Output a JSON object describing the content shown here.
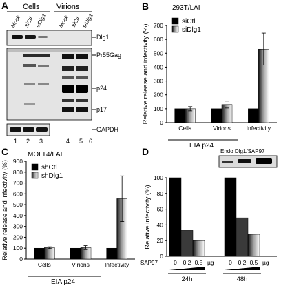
{
  "figure": {
    "panelA": {
      "letter": "A",
      "group_cells": "Cells",
      "group_virions": "Virions",
      "lane_headers": [
        "Mock",
        "siCtl",
        "siDlg1",
        "Mock",
        "siCtl",
        "siDlg1"
      ],
      "lane_numbers": [
        "1",
        "2",
        "3",
        "4",
        "5",
        "6"
      ],
      "blots": {
        "dlg1": "Dlg1",
        "pr55": "Pr55Gag",
        "p24": "p24",
        "p17": "p17",
        "gapdh": "GAPDH"
      }
    },
    "panelB": {
      "letter": "B",
      "cell_line": "293T/LAI",
      "eia": "EIA p24"
    },
    "panelC": {
      "letter": "C",
      "cell_line": "MOLT4/LAI",
      "eia": "EIA p24"
    },
    "panelD": {
      "letter": "D",
      "inset_label": "Endo Dlg1/SAP97",
      "sap97_label": "SAP97",
      "dose_labels": [
        "0",
        "0.2",
        "0.5",
        "µg",
        "0",
        "0.2",
        "0.5",
        "µg"
      ],
      "time_labels": [
        "24h",
        "48h"
      ]
    }
  },
  "chart_data": [
    {
      "panel": "B",
      "type": "bar",
      "ylabel": "Relative release and infectivity (%)",
      "ylim": [
        0,
        700
      ],
      "yticks": [
        0,
        100,
        200,
        300,
        400,
        500,
        600,
        700
      ],
      "categories": [
        "Cells",
        "Virions",
        "Infectivity"
      ],
      "series": [
        {
          "name": "siCtl",
          "values": [
            100,
            100,
            100
          ],
          "errors": [
            0,
            0,
            0
          ],
          "color": "#000000"
        },
        {
          "name": "siDlg1",
          "values": [
            100,
            130,
            530
          ],
          "errors": [
            15,
            25,
            115
          ],
          "color": "gradient"
        }
      ]
    },
    {
      "panel": "C",
      "type": "bar",
      "ylabel": "Relative release and infectivity (%)",
      "ylim": [
        0,
        900
      ],
      "yticks": [
        0,
        100,
        200,
        300,
        400,
        500,
        600,
        700,
        800,
        900
      ],
      "categories": [
        "Cells",
        "Virions",
        "Infectivity"
      ],
      "series": [
        {
          "name": "shCtl",
          "values": [
            100,
            100,
            100
          ],
          "errors": [
            0,
            0,
            0
          ],
          "color": "#000000"
        },
        {
          "name": "shDlg1",
          "values": [
            105,
            105,
            555
          ],
          "errors": [
            8,
            18,
            210
          ],
          "color": "gradient"
        }
      ]
    },
    {
      "panel": "D",
      "type": "bar",
      "ylabel": "Relative infectivity (%)",
      "ylim": [
        0,
        100
      ],
      "yticks": [
        0,
        20,
        40,
        60,
        80,
        100
      ],
      "groups": [
        {
          "name": "24h",
          "doses": [
            "0",
            "0.2",
            "0.5"
          ],
          "values": [
            100,
            33,
            20
          ]
        },
        {
          "name": "48h",
          "doses": [
            "0",
            "0.2",
            "0.5"
          ],
          "values": [
            100,
            49,
            28
          ]
        }
      ]
    }
  ]
}
